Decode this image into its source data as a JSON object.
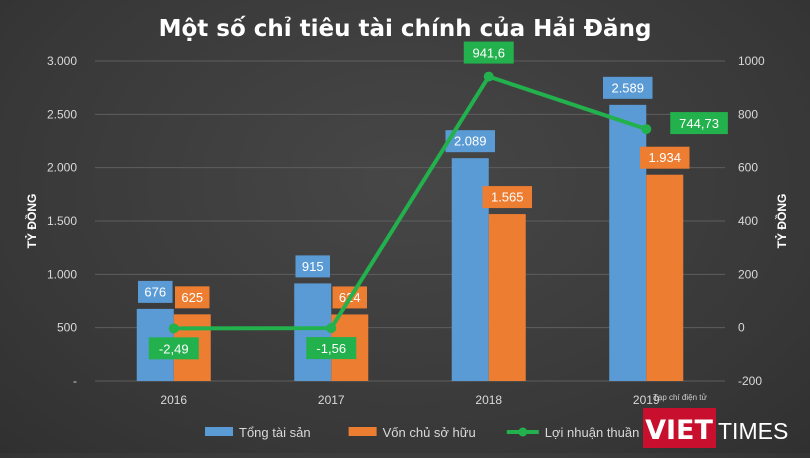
{
  "chart_data": {
    "type": "bar",
    "title": "Một số chỉ tiêu tài chính của Hải Đăng",
    "categories": [
      "2016",
      "2017",
      "2018",
      "2019"
    ],
    "ylabel": "TỶ ĐỒNG",
    "y2label": "TỶ ĐỒNG",
    "ylim": [
      0,
      3000
    ],
    "y2lim": [
      -200,
      1000
    ],
    "y_ticks": [
      "-",
      "500",
      "1.000",
      "1.500",
      "2.000",
      "2.500",
      "3.000"
    ],
    "y2_ticks": [
      "-200",
      "0",
      "200",
      "400",
      "600",
      "800",
      "1000"
    ],
    "grid": true,
    "legend_position": "bottom",
    "series": [
      {
        "name": "Tổng tài sản",
        "type": "bar",
        "axis": "left",
        "color": "#5b9bd5",
        "values": [
          676,
          915,
          2089,
          2589
        ],
        "labels": [
          "676",
          "915",
          "2.089",
          "2.589"
        ]
      },
      {
        "name": "Vốn chủ sở hữu",
        "type": "bar",
        "axis": "left",
        "color": "#ed7d31",
        "values": [
          625,
          624,
          1565,
          1934
        ],
        "labels": [
          "625",
          "624",
          "1.565",
          "1.934"
        ]
      },
      {
        "name": "Lợi nhuận thuần",
        "type": "line",
        "axis": "right",
        "color": "#22b14c",
        "values": [
          -2.49,
          -1.56,
          941.6,
          744.73
        ],
        "labels": [
          "-2,49",
          "-1,56",
          "941,6",
          "744,73"
        ]
      }
    ]
  },
  "watermark": {
    "brand_left": "VIET",
    "brand_right": "TIMES",
    "tagline": "Tạp chí điện tử",
    "brand_color": "#c8102e"
  }
}
